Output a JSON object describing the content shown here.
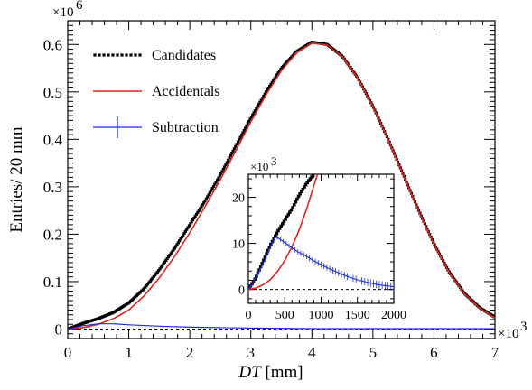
{
  "chart_data": [
    {
      "type": "line",
      "role": "main",
      "xlabel": {
        "italic": "DT",
        "rest": " [mm]"
      },
      "ylabel": "Entries/ 20 mm",
      "x_multiplier": "×10",
      "x_multiplier_exp": "3",
      "y_multiplier": "×10",
      "y_multiplier_exp": "6",
      "xlim": [
        0,
        7000
      ],
      "ylim": [
        -0.02,
        0.65
      ],
      "x_ticks": [
        0,
        1000,
        2000,
        3000,
        4000,
        5000,
        6000,
        7000
      ],
      "x_tick_labels": [
        "0",
        "1",
        "2",
        "3",
        "4",
        "5",
        "6",
        "7"
      ],
      "y_ticks": [
        0,
        0.1,
        0.2,
        0.3,
        0.4,
        0.5,
        0.6
      ],
      "y_tick_labels": [
        "0",
        "0.1",
        "0.2",
        "0.3",
        "0.4",
        "0.5",
        "0.6"
      ],
      "legend_position": "top-left",
      "grid": false,
      "series": [
        {
          "name": "Candidates",
          "style": "dotted-markers",
          "color": "#000000",
          "x": [
            0,
            250,
            500,
            750,
            1000,
            1250,
            1500,
            1750,
            2000,
            2250,
            2500,
            2750,
            3000,
            3250,
            3500,
            3750,
            4000,
            4250,
            4500,
            4750,
            5000,
            5250,
            5500,
            5750,
            6000,
            6250,
            6500,
            6750,
            7000
          ],
          "y": [
            0.0,
            0.012,
            0.022,
            0.035,
            0.055,
            0.085,
            0.125,
            0.17,
            0.22,
            0.27,
            0.325,
            0.385,
            0.445,
            0.5,
            0.55,
            0.585,
            0.605,
            0.6,
            0.575,
            0.53,
            0.47,
            0.4,
            0.325,
            0.25,
            0.18,
            0.12,
            0.075,
            0.045,
            0.025
          ]
        },
        {
          "name": "Accidentals",
          "style": "line",
          "color": "#e8211f",
          "x": [
            0,
            250,
            500,
            750,
            1000,
            1250,
            1500,
            1750,
            2000,
            2250,
            2500,
            2750,
            3000,
            3250,
            3500,
            3750,
            4000,
            4250,
            4500,
            4750,
            5000,
            5250,
            5500,
            5750,
            6000,
            6250,
            6500,
            6750,
            7000
          ],
          "y": [
            0.0,
            0.003,
            0.01,
            0.022,
            0.04,
            0.07,
            0.108,
            0.153,
            0.203,
            0.258,
            0.315,
            0.375,
            0.437,
            0.494,
            0.545,
            0.583,
            0.603,
            0.599,
            0.574,
            0.529,
            0.469,
            0.399,
            0.324,
            0.249,
            0.179,
            0.119,
            0.074,
            0.044,
            0.024
          ]
        },
        {
          "name": "Subtraction",
          "style": "line-with-errorbars",
          "color": "#1f2bdd",
          "x": [
            0,
            250,
            500,
            750,
            1000,
            1500,
            2000,
            3000,
            4000,
            5000,
            6000,
            7000
          ],
          "y": [
            0.0,
            0.007,
            0.011,
            0.011,
            0.009,
            0.006,
            0.004,
            0.002,
            0.001,
            0.001,
            0.001,
            0.001
          ]
        }
      ],
      "baseline": {
        "y": 0,
        "style": "dashed",
        "color": "#000000"
      }
    },
    {
      "type": "line",
      "role": "inset",
      "y_multiplier": "×10",
      "y_multiplier_exp": "3",
      "xlim": [
        0,
        2000
      ],
      "ylim": [
        -3,
        25
      ],
      "x_ticks": [
        0,
        500,
        1000,
        1500,
        2000
      ],
      "x_tick_labels": [
        "0",
        "500",
        "1000",
        "1500",
        "2000"
      ],
      "y_ticks": [
        0,
        10,
        20
      ],
      "y_tick_labels": [
        "0",
        "10",
        "20"
      ],
      "series": [
        {
          "name": "Candidates",
          "color": "#000000",
          "x": [
            0,
            100,
            200,
            300,
            400,
            500,
            600,
            700,
            800,
            900
          ],
          "y": [
            0.0,
            2.5,
            6.0,
            9.5,
            12.5,
            15.0,
            17.5,
            20.5,
            23.0,
            25.0
          ]
        },
        {
          "name": "Accidentals",
          "color": "#e8211f",
          "x": [
            0,
            100,
            200,
            300,
            400,
            500,
            600,
            700,
            800,
            900,
            950
          ],
          "y": [
            0.0,
            0.3,
            1.0,
            2.1,
            3.9,
            6.3,
            9.3,
            13.0,
            17.4,
            22.5,
            25.0
          ]
        },
        {
          "name": "Subtraction",
          "color": "#1f2bdd",
          "x": [
            0,
            100,
            200,
            300,
            350,
            400,
            500,
            600,
            700,
            800,
            900,
            1000,
            1100,
            1200,
            1300,
            1400,
            1500,
            1600,
            1700,
            1800,
            1900,
            2000
          ],
          "y": [
            0.0,
            2.5,
            5.5,
            9.0,
            11.2,
            11.3,
            10.2,
            9.0,
            8.0,
            7.2,
            6.2,
            5.4,
            4.6,
            3.9,
            3.2,
            2.6,
            2.1,
            1.7,
            1.3,
            1.0,
            0.8,
            0.6
          ]
        }
      ],
      "baseline": {
        "y": 0,
        "style": "dashed",
        "color": "#000000"
      }
    }
  ]
}
